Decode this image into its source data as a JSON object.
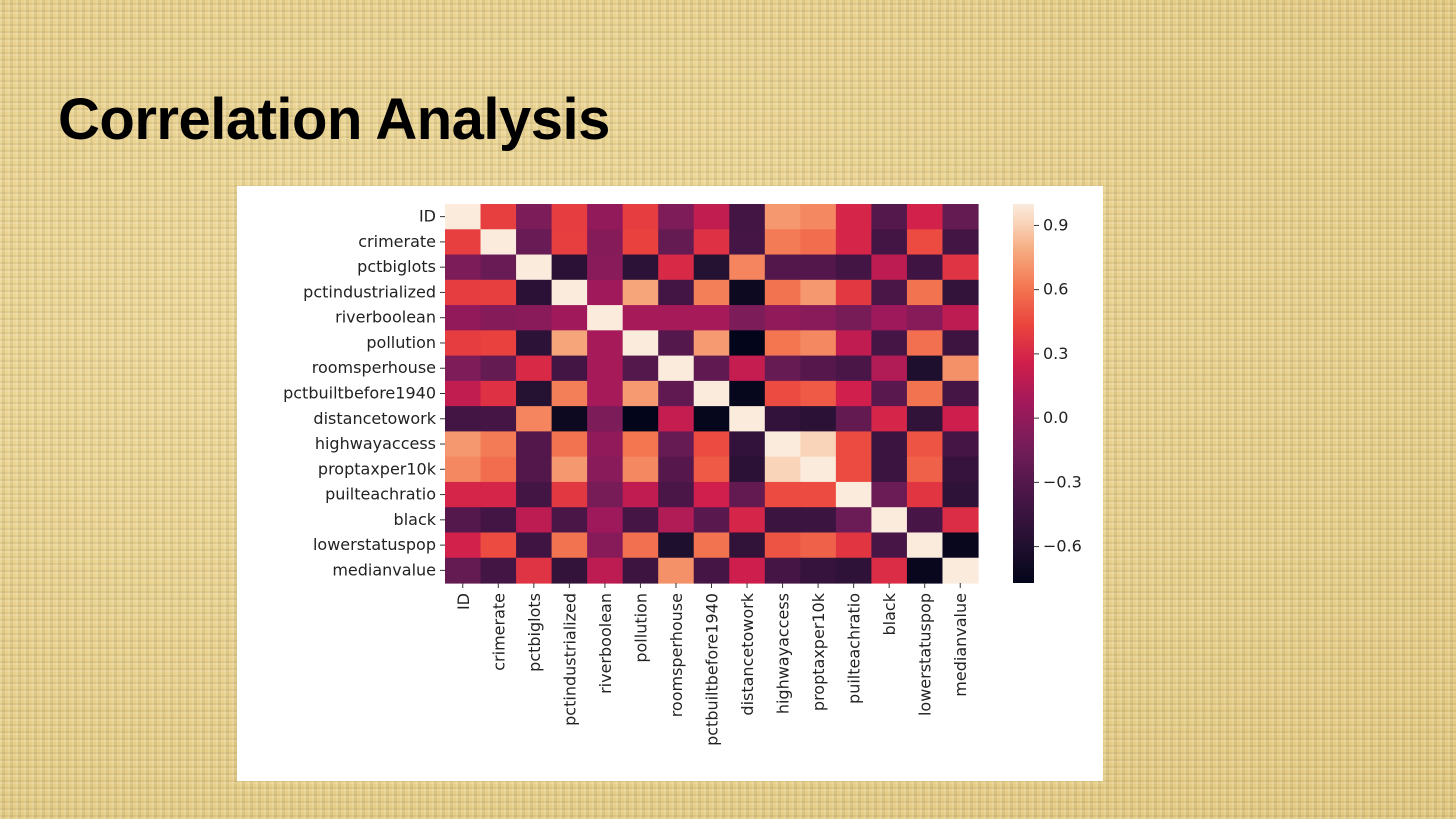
{
  "slide": {
    "title": "Correlation Analysis"
  },
  "chart_data": {
    "type": "heatmap",
    "title": "",
    "colormap": "rocket",
    "vmin": -0.77,
    "vmax": 1.0,
    "labels": [
      "ID",
      "crimerate",
      "pctbiglots",
      "pctindustrialized",
      "riverboolean",
      "pollution",
      "roomsperhouse",
      "pctbuiltbefore1940",
      "distancetowork",
      "highwayaccess",
      "proptaxper10k",
      "puilteachratio",
      "black",
      "lowerstatuspop",
      "medianvalue"
    ],
    "matrix": [
      [
        1.0,
        0.41,
        -0.1,
        0.4,
        -0.0,
        0.4,
        -0.09,
        0.2,
        -0.39,
        0.72,
        0.67,
        0.29,
        -0.3,
        0.27,
        -0.22
      ],
      [
        0.41,
        1.0,
        -0.2,
        0.41,
        -0.06,
        0.42,
        -0.22,
        0.35,
        -0.38,
        0.63,
        0.58,
        0.29,
        -0.39,
        0.46,
        -0.39
      ],
      [
        -0.1,
        -0.2,
        1.0,
        -0.53,
        -0.04,
        -0.52,
        0.31,
        -0.57,
        0.66,
        -0.31,
        -0.31,
        -0.39,
        0.18,
        -0.41,
        0.36
      ],
      [
        0.4,
        0.41,
        -0.53,
        1.0,
        0.06,
        0.76,
        -0.39,
        0.64,
        -0.71,
        0.6,
        0.72,
        0.38,
        -0.36,
        0.6,
        -0.48
      ],
      [
        -0.0,
        -0.06,
        -0.04,
        0.06,
        1.0,
        0.09,
        0.09,
        0.09,
        -0.1,
        -0.01,
        -0.04,
        -0.12,
        0.05,
        -0.05,
        0.18
      ],
      [
        0.4,
        0.42,
        -0.52,
        0.76,
        0.09,
        1.0,
        -0.3,
        0.73,
        -0.77,
        0.61,
        0.67,
        0.19,
        -0.38,
        0.59,
        -0.43
      ],
      [
        -0.09,
        -0.22,
        0.31,
        -0.39,
        0.09,
        -0.3,
        1.0,
        -0.24,
        0.21,
        -0.21,
        -0.29,
        -0.36,
        0.13,
        -0.61,
        0.7
      ],
      [
        0.2,
        0.35,
        -0.57,
        0.64,
        0.09,
        0.73,
        -0.24,
        1.0,
        -0.75,
        0.46,
        0.51,
        0.26,
        -0.27,
        0.6,
        -0.38
      ],
      [
        -0.39,
        -0.38,
        0.66,
        -0.71,
        -0.1,
        -0.77,
        0.21,
        -0.75,
        1.0,
        -0.49,
        -0.53,
        -0.23,
        0.29,
        -0.5,
        0.25
      ],
      [
        0.72,
        0.63,
        -0.31,
        0.6,
        -0.01,
        0.61,
        -0.21,
        0.46,
        -0.49,
        1.0,
        0.91,
        0.46,
        -0.44,
        0.49,
        -0.38
      ],
      [
        0.67,
        0.58,
        -0.31,
        0.72,
        -0.04,
        0.67,
        -0.29,
        0.51,
        -0.53,
        0.91,
        1.0,
        0.46,
        -0.44,
        0.54,
        -0.47
      ],
      [
        0.29,
        0.29,
        -0.39,
        0.38,
        -0.12,
        0.19,
        -0.36,
        0.26,
        -0.23,
        0.46,
        0.46,
        1.0,
        -0.18,
        0.37,
        -0.51
      ],
      [
        -0.3,
        -0.39,
        0.18,
        -0.36,
        0.05,
        -0.38,
        0.13,
        -0.27,
        0.29,
        -0.44,
        -0.44,
        -0.18,
        1.0,
        -0.37,
        0.33
      ],
      [
        0.27,
        0.46,
        -0.41,
        0.6,
        -0.05,
        0.59,
        -0.61,
        0.6,
        -0.5,
        0.49,
        0.54,
        0.37,
        -0.37,
        1.0,
        -0.74
      ],
      [
        -0.22,
        -0.39,
        0.36,
        -0.48,
        0.18,
        -0.43,
        0.7,
        -0.38,
        0.25,
        -0.38,
        -0.47,
        -0.51,
        0.33,
        -0.74,
        1.0
      ]
    ],
    "colorbar_ticks": [
      0.9,
      0.6,
      0.3,
      0.0,
      -0.3,
      -0.6
    ],
    "colorbar_tick_labels": [
      "0.9",
      "0.6",
      "0.3",
      "0.0",
      "−0.3",
      "−0.6"
    ]
  }
}
